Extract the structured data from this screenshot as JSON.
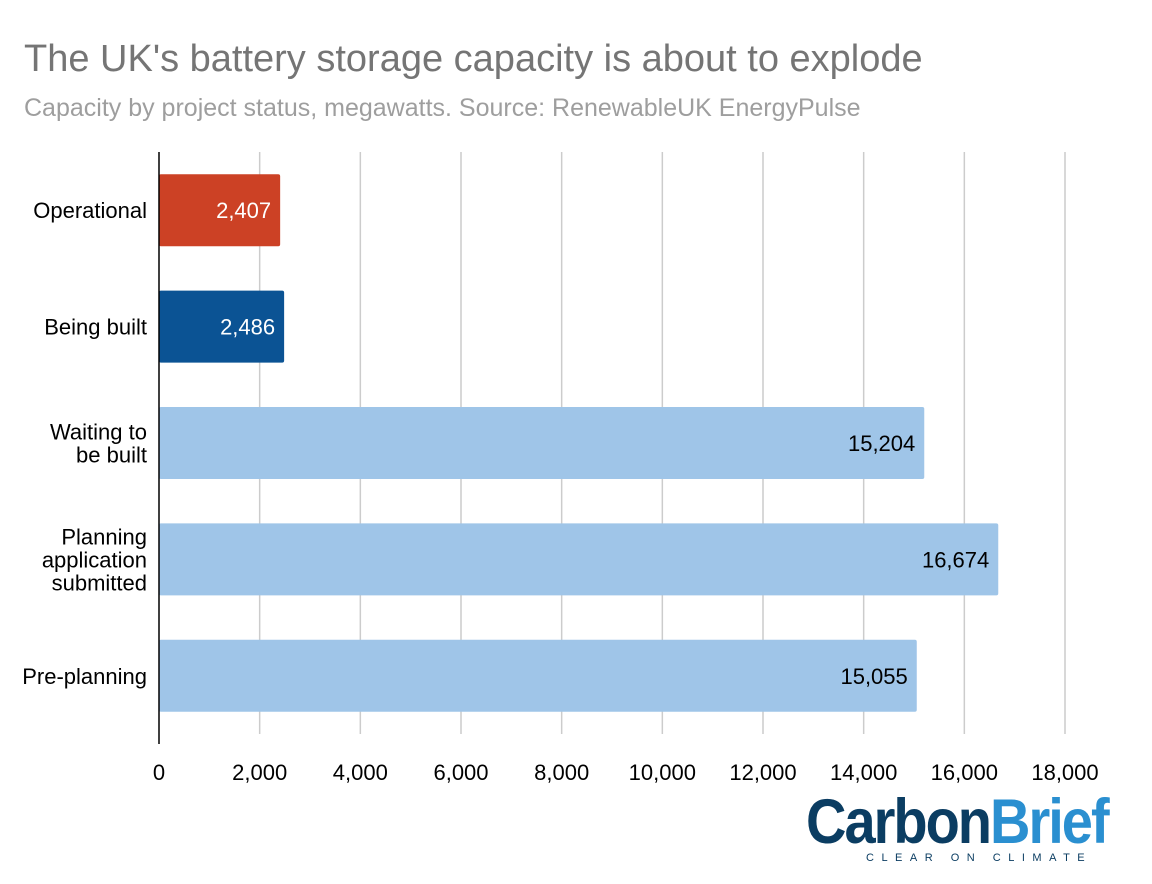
{
  "header": {
    "title": "The UK's battery storage capacity is about to explode",
    "subtitle": "Capacity by project status, megawatts. Source: RenewableUK EnergyPulse"
  },
  "brand": {
    "word_carbon": "Carbon",
    "word_brief": "Brief",
    "tagline": "CLEAR ON CLIMATE"
  },
  "chart_data": {
    "type": "bar",
    "orientation": "horizontal",
    "title": "The UK's battery storage capacity is about to explode",
    "subtitle": "Capacity by project status, megawatts. Source: RenewableUK EnergyPulse",
    "categories": [
      [
        "Operational"
      ],
      [
        "Being built"
      ],
      [
        "Waiting to",
        "be built"
      ],
      [
        "Planning",
        "application",
        "submitted"
      ],
      [
        "Pre-planning"
      ]
    ],
    "values": [
      2407,
      2486,
      15204,
      16674,
      15055
    ],
    "value_labels": [
      "2,407",
      "2,486",
      "15,204",
      "16,674",
      "15,055"
    ],
    "bar_colors": [
      "#cc4125",
      "#0b5394",
      "#9fc5e8",
      "#9fc5e8",
      "#9fc5e8"
    ],
    "value_label_colors": [
      "#ffffff",
      "#ffffff",
      "#000000",
      "#000000",
      "#000000"
    ],
    "xlim": [
      0,
      18000
    ],
    "xticks": [
      0,
      2000,
      4000,
      6000,
      8000,
      10000,
      12000,
      14000,
      16000,
      18000
    ],
    "xtick_labels": [
      "0",
      "2,000",
      "4,000",
      "6,000",
      "8,000",
      "10,000",
      "12,000",
      "14,000",
      "16,000",
      "18,000"
    ],
    "grid": "vertical",
    "gridline_color": "#cccccc",
    "axis_color": "#000000",
    "legend": "none"
  }
}
